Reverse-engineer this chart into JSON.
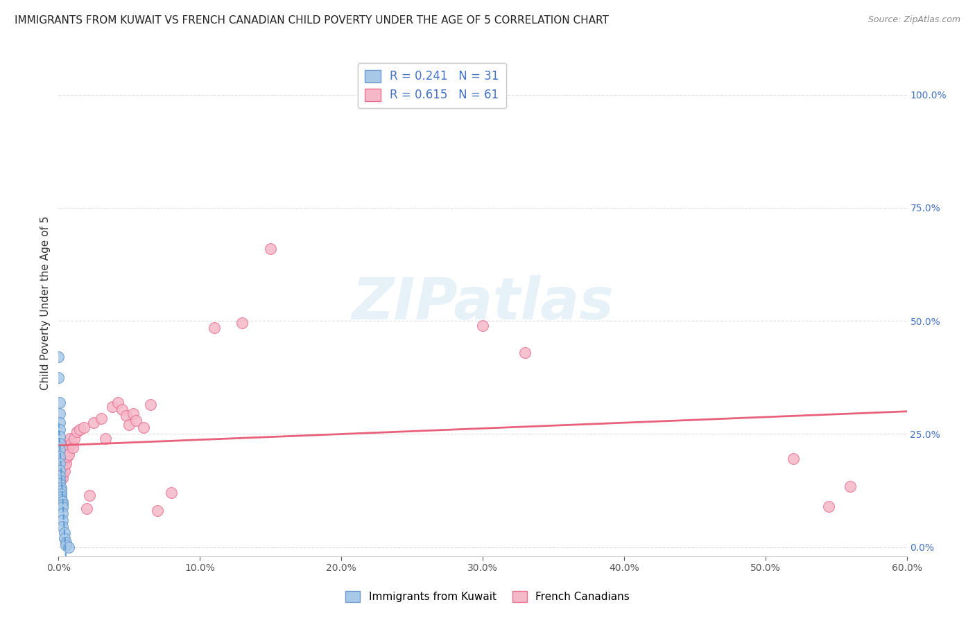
{
  "title": "IMMIGRANTS FROM KUWAIT VS FRENCH CANADIAN CHILD POVERTY UNDER THE AGE OF 5 CORRELATION CHART",
  "source": "Source: ZipAtlas.com",
  "ylabel": "Child Poverty Under the Age of 5",
  "watermark": "ZIPatlas",
  "blue_R": 0.241,
  "blue_N": 31,
  "pink_R": 0.615,
  "pink_N": 61,
  "blue_label": "Immigrants from Kuwait",
  "pink_label": "French Canadians",
  "blue_color": "#a8c8e8",
  "pink_color": "#f5b8c8",
  "blue_edge_color": "#6699cc",
  "pink_edge_color": "#e87090",
  "blue_line_color": "#5b9bd5",
  "pink_line_color": "#e8607a",
  "xlim": [
    0.0,
    0.6
  ],
  "ylim": [
    -0.02,
    1.1
  ],
  "blue_points": [
    [
      0.0,
      0.42
    ],
    [
      0.0,
      0.375
    ],
    [
      0.001,
      0.32
    ],
    [
      0.001,
      0.295
    ],
    [
      0.001,
      0.275
    ],
    [
      0.001,
      0.26
    ],
    [
      0.001,
      0.245
    ],
    [
      0.001,
      0.23
    ],
    [
      0.001,
      0.215
    ],
    [
      0.001,
      0.2
    ],
    [
      0.001,
      0.185
    ],
    [
      0.001,
      0.17
    ],
    [
      0.001,
      0.158
    ],
    [
      0.001,
      0.148
    ],
    [
      0.001,
      0.14
    ],
    [
      0.002,
      0.132
    ],
    [
      0.002,
      0.125
    ],
    [
      0.002,
      0.118
    ],
    [
      0.002,
      0.112
    ],
    [
      0.002,
      0.106
    ],
    [
      0.003,
      0.1
    ],
    [
      0.003,
      0.094
    ],
    [
      0.003,
      0.088
    ],
    [
      0.003,
      0.075
    ],
    [
      0.003,
      0.06
    ],
    [
      0.003,
      0.045
    ],
    [
      0.004,
      0.032
    ],
    [
      0.004,
      0.02
    ],
    [
      0.005,
      0.01
    ],
    [
      0.005,
      0.004
    ],
    [
      0.007,
      0.0
    ]
  ],
  "pink_points": [
    [
      0.0,
      0.2
    ],
    [
      0.001,
      0.175
    ],
    [
      0.001,
      0.16
    ],
    [
      0.001,
      0.148
    ],
    [
      0.001,
      0.138
    ],
    [
      0.002,
      0.2
    ],
    [
      0.002,
      0.19
    ],
    [
      0.002,
      0.175
    ],
    [
      0.002,
      0.162
    ],
    [
      0.002,
      0.152
    ],
    [
      0.003,
      0.205
    ],
    [
      0.003,
      0.195
    ],
    [
      0.003,
      0.185
    ],
    [
      0.003,
      0.175
    ],
    [
      0.003,
      0.162
    ],
    [
      0.003,
      0.152
    ],
    [
      0.004,
      0.215
    ],
    [
      0.004,
      0.205
    ],
    [
      0.004,
      0.192
    ],
    [
      0.004,
      0.18
    ],
    [
      0.004,
      0.168
    ],
    [
      0.005,
      0.225
    ],
    [
      0.005,
      0.212
    ],
    [
      0.005,
      0.198
    ],
    [
      0.005,
      0.185
    ],
    [
      0.006,
      0.23
    ],
    [
      0.006,
      0.215
    ],
    [
      0.006,
      0.2
    ],
    [
      0.007,
      0.22
    ],
    [
      0.007,
      0.205
    ],
    [
      0.008,
      0.24
    ],
    [
      0.009,
      0.23
    ],
    [
      0.01,
      0.22
    ],
    [
      0.011,
      0.24
    ],
    [
      0.013,
      0.255
    ],
    [
      0.015,
      0.26
    ],
    [
      0.018,
      0.265
    ],
    [
      0.02,
      0.085
    ],
    [
      0.022,
      0.115
    ],
    [
      0.025,
      0.275
    ],
    [
      0.03,
      0.285
    ],
    [
      0.033,
      0.24
    ],
    [
      0.038,
      0.31
    ],
    [
      0.042,
      0.32
    ],
    [
      0.045,
      0.305
    ],
    [
      0.048,
      0.29
    ],
    [
      0.05,
      0.27
    ],
    [
      0.053,
      0.295
    ],
    [
      0.055,
      0.28
    ],
    [
      0.06,
      0.265
    ],
    [
      0.065,
      0.315
    ],
    [
      0.07,
      0.08
    ],
    [
      0.08,
      0.12
    ],
    [
      0.11,
      0.485
    ],
    [
      0.13,
      0.495
    ],
    [
      0.15,
      0.66
    ],
    [
      0.3,
      0.49
    ],
    [
      0.33,
      0.43
    ],
    [
      0.52,
      0.195
    ],
    [
      0.545,
      0.09
    ],
    [
      0.56,
      0.135
    ]
  ],
  "xticks": [
    0.0,
    0.1,
    0.2,
    0.3,
    0.4,
    0.5,
    0.6
  ],
  "xtick_labels": [
    "0.0%",
    "10.0%",
    "20.0%",
    "30.0%",
    "40.0%",
    "50.0%",
    "60.0%"
  ],
  "yticks_right": [
    0.0,
    0.25,
    0.5,
    0.75,
    1.0
  ],
  "ytick_right_labels": [
    "0.0%",
    "25.0%",
    "50.0%",
    "75.0%",
    "100.0%"
  ],
  "grid_color": "#dddddd",
  "background_color": "#ffffff",
  "title_fontsize": 11,
  "axis_label_fontsize": 11,
  "tick_fontsize": 10
}
